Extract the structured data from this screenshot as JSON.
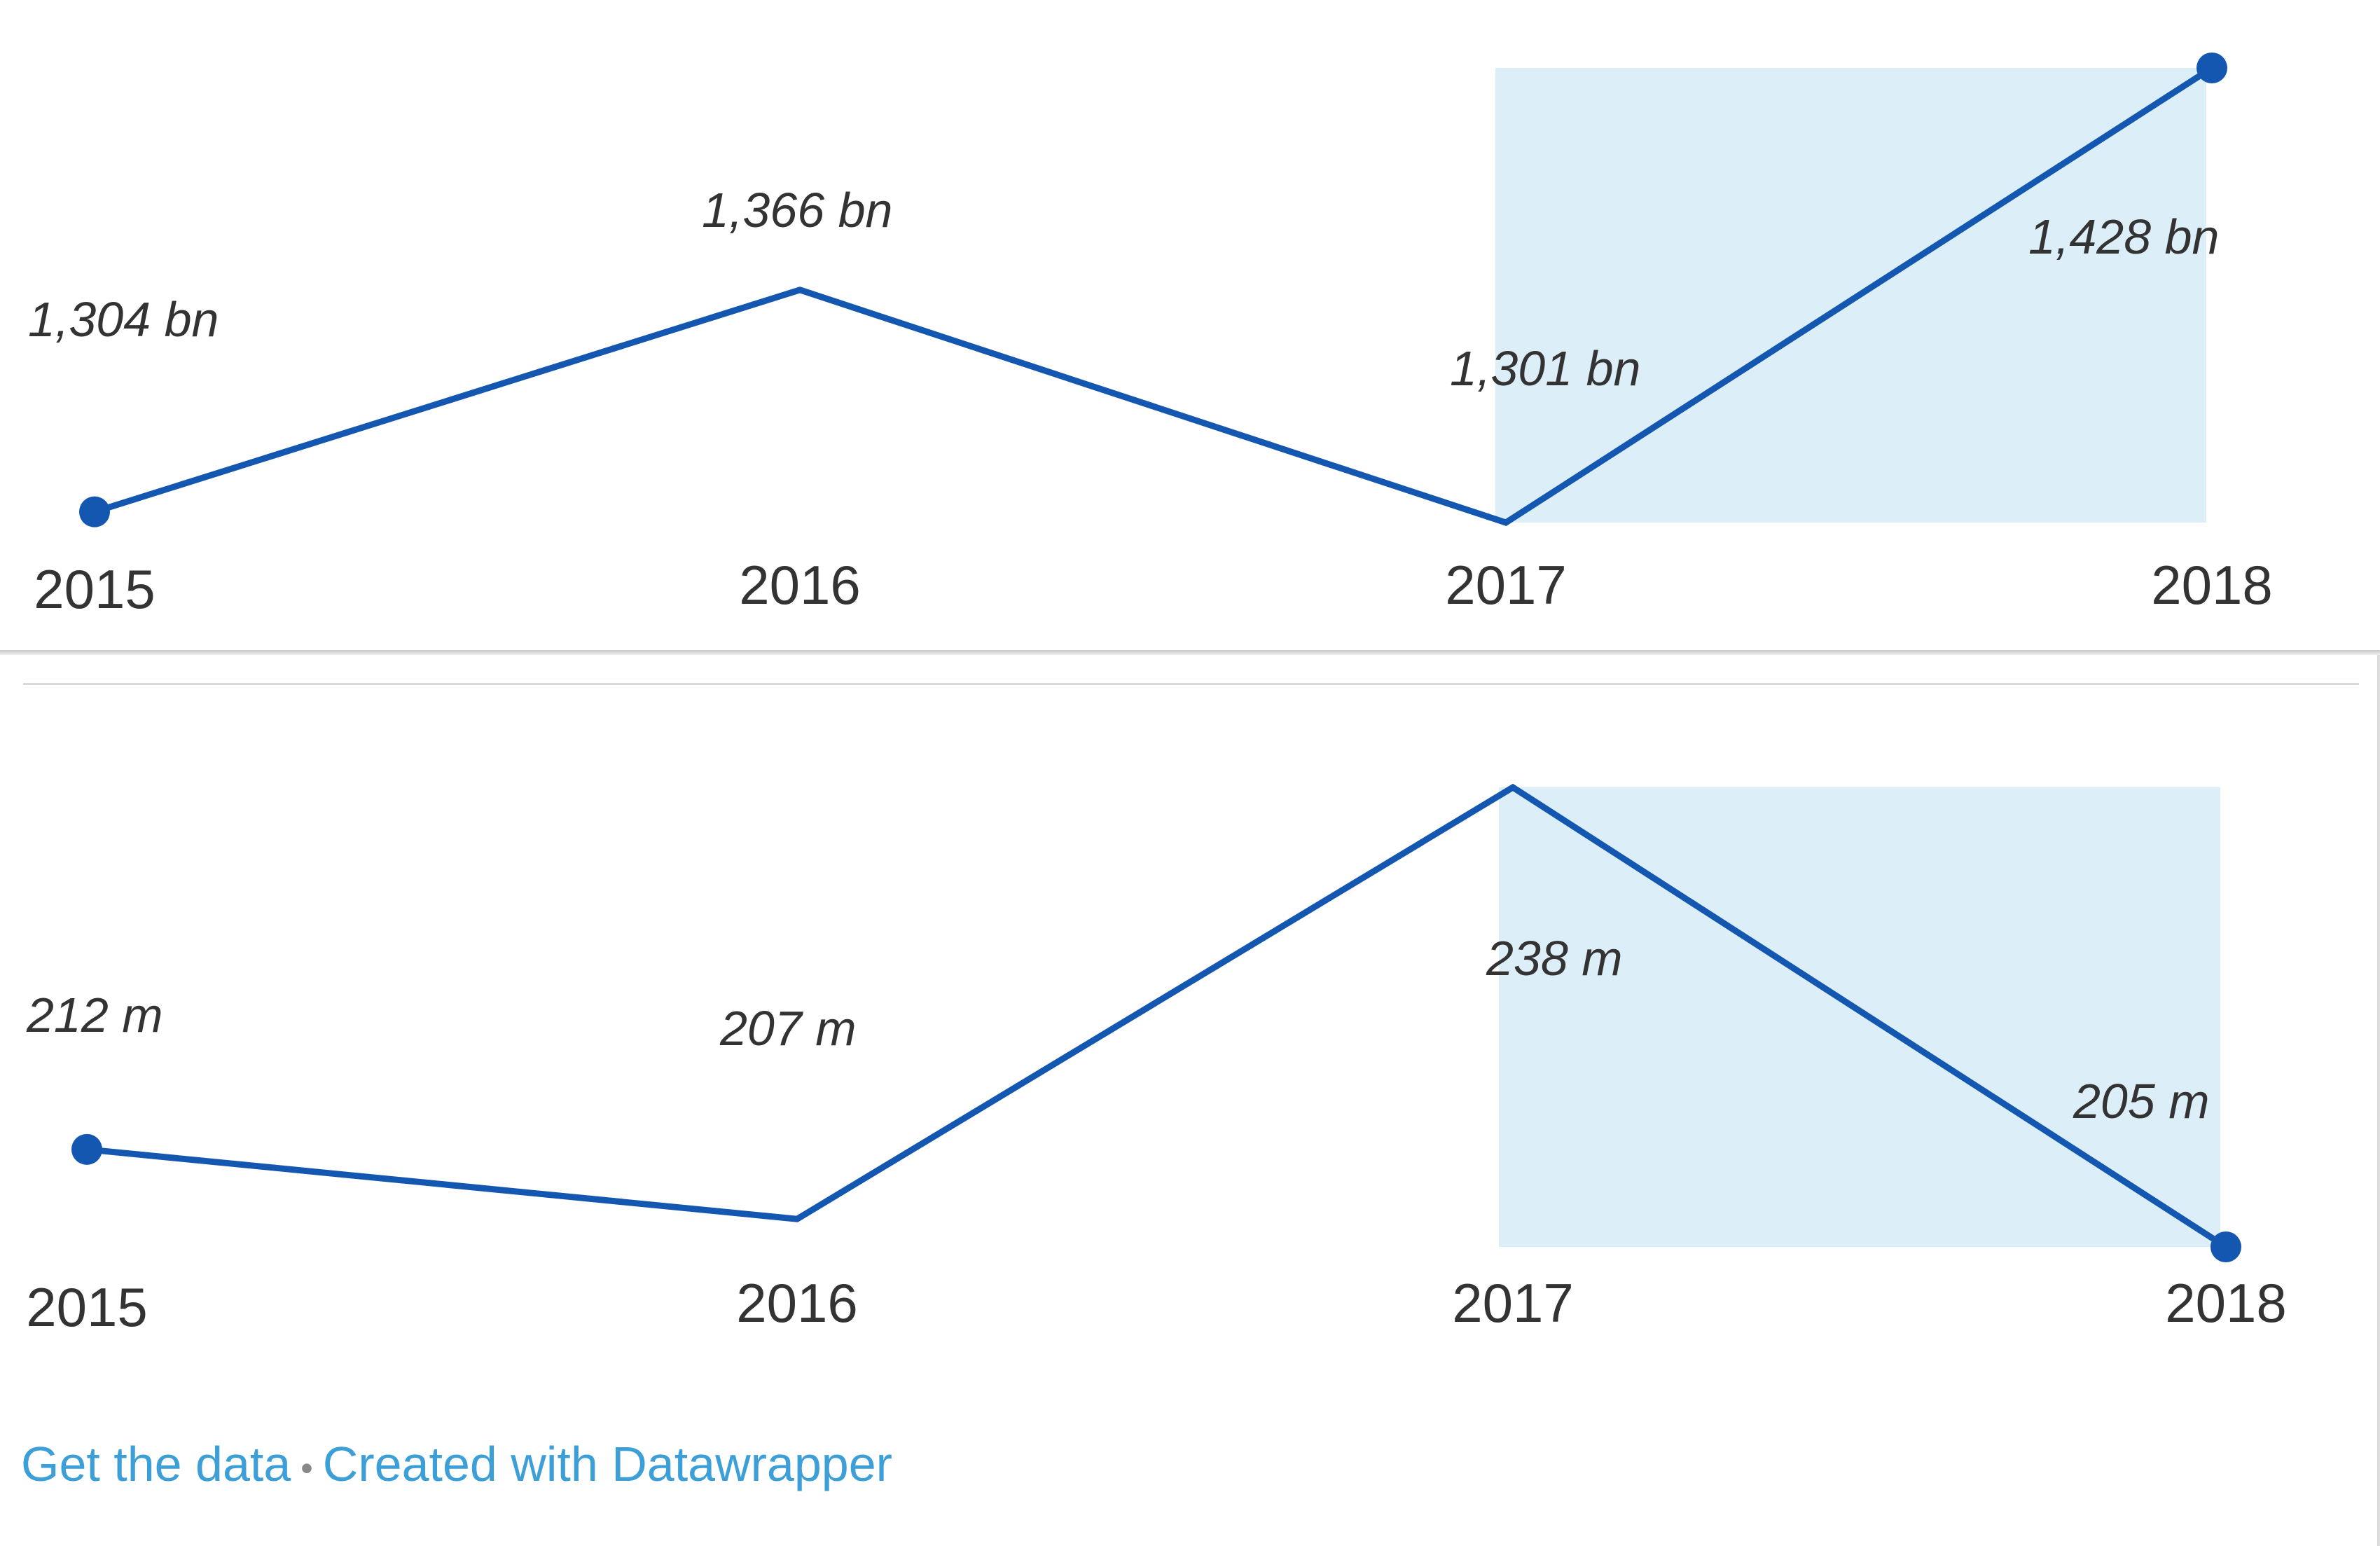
{
  "colors": {
    "line": "#1357b0",
    "highlight": "#dceef8",
    "text": "#333333",
    "link": "#3d9fd7"
  },
  "chart_data": [
    {
      "type": "line",
      "x": [
        "2015",
        "2016",
        "2017",
        "2018"
      ],
      "series": [
        {
          "values": [
            1304,
            1366,
            1301,
            1428
          ]
        }
      ],
      "value_labels": [
        "1,304 bn",
        "1,366 bn",
        "1,301 bn",
        "1,428 bn"
      ],
      "ylim": [
        1301,
        1428
      ],
      "highlight_range": [
        "2017",
        "2018"
      ],
      "markers_at": [
        "2015",
        "2018"
      ],
      "grid": false
    },
    {
      "type": "line",
      "x": [
        "2015",
        "2016",
        "2017",
        "2018"
      ],
      "series": [
        {
          "values": [
            212,
            207,
            238,
            205
          ]
        }
      ],
      "value_labels": [
        "212 m",
        "207 m",
        "238 m",
        "205 m"
      ],
      "ylim": [
        205,
        238
      ],
      "highlight_range": [
        "2017",
        "2018"
      ],
      "markers_at": [
        "2015",
        "2018"
      ],
      "grid": false
    }
  ],
  "footer": {
    "get_data": "Get the data",
    "separator": "•",
    "created_with": "Created with Datawrapper"
  }
}
